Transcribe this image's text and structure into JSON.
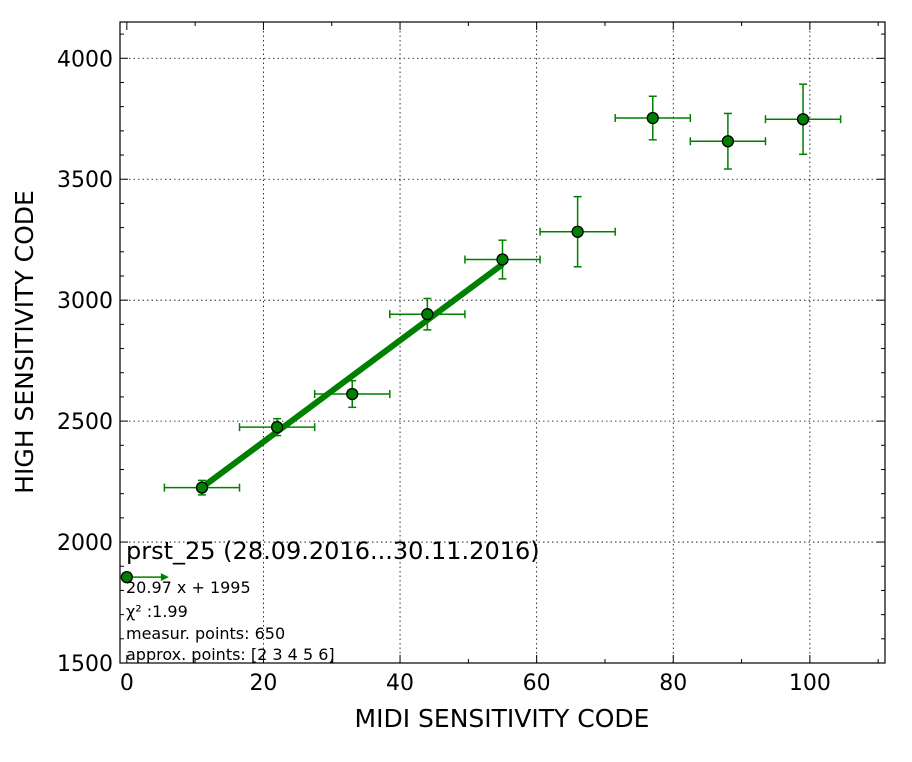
{
  "chart_data": {
    "type": "scatter",
    "title": "prst_25 (28.09.2016...30.11.2016)",
    "xlabel": "MIDI SENSITIVITY CODE",
    "ylabel": "HIGH SENSITIVITY CODE",
    "xlim": [
      -1,
      111
    ],
    "ylim": [
      1500,
      4150
    ],
    "xticks": [
      0,
      20,
      40,
      60,
      80,
      100
    ],
    "yticks": [
      1500,
      2000,
      2500,
      3000,
      3500,
      4000
    ],
    "grid": true,
    "colors": {
      "series": "#008000",
      "edge": "#000000"
    },
    "series": [
      {
        "x": [
          0,
          11,
          22,
          33,
          44,
          55,
          66,
          77,
          88,
          99
        ],
        "y": [
          1855,
          2225,
          2475,
          2612,
          2942,
          3168,
          3283,
          3753,
          3657,
          3748
        ],
        "xerr": [
          0,
          5.5,
          5.5,
          5.5,
          5.5,
          5.5,
          5.5,
          5.5,
          5.5,
          5.5
        ],
        "yerr": [
          0,
          30,
          35,
          55,
          65,
          80,
          145,
          90,
          115,
          145
        ]
      }
    ],
    "fit_line": {
      "slope": 20.97,
      "intercept": 1995,
      "x_range": [
        11,
        55
      ]
    },
    "annotations": {
      "equation": "20.97 x + 1995",
      "chi2_label": "χ² :1.99",
      "measur_points": "measur. points: 650",
      "approx_points": "approx. points: [2 3 4 5 6]"
    }
  }
}
